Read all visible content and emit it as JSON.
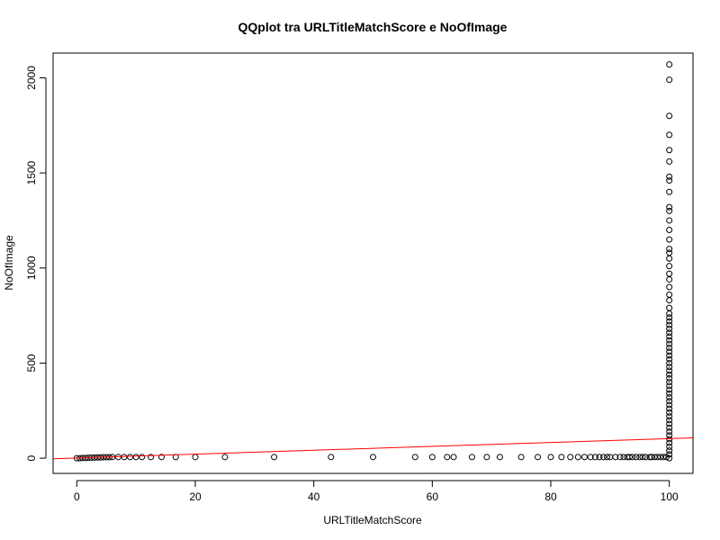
{
  "chart_data": {
    "type": "scatter",
    "title": "QQplot tra URLTitleMatchScore e NoOfImage",
    "xlabel": "URLTitleMatchScore",
    "ylabel": "NoOfImage",
    "xlim": [
      -4,
      104
    ],
    "ylim": [
      -80,
      2130
    ],
    "x_ticks": [
      0,
      20,
      40,
      60,
      80,
      100
    ],
    "y_ticks": [
      0,
      500,
      1000,
      1500,
      2000
    ],
    "x_tick_labels": [
      "0",
      "20",
      "40",
      "60",
      "80",
      "100"
    ],
    "y_tick_labels": [
      "0",
      "500",
      "1000",
      "1500",
      "2000"
    ],
    "grid": false,
    "point_color": "#000000",
    "line_color": "#ff0000",
    "reference_line": {
      "x": [
        -4,
        104
      ],
      "y": [
        -3,
        107
      ]
    },
    "series": [
      {
        "points": [
          [
            0,
            0
          ],
          [
            0.5,
            0
          ],
          [
            1,
            1
          ],
          [
            1.5,
            1
          ],
          [
            2,
            2
          ],
          [
            2.5,
            3
          ],
          [
            3,
            3
          ],
          [
            3.5,
            4
          ],
          [
            4,
            4
          ],
          [
            4.5,
            5
          ],
          [
            5,
            5
          ],
          [
            5.5,
            5
          ],
          [
            6,
            6
          ],
          [
            7,
            6
          ],
          [
            8,
            6
          ],
          [
            9,
            6
          ],
          [
            10,
            6
          ],
          [
            11,
            6
          ],
          [
            12.5,
            6
          ],
          [
            14.3,
            6
          ],
          [
            16.7,
            6
          ],
          [
            20,
            6
          ],
          [
            25,
            6
          ],
          [
            33.3,
            6
          ],
          [
            42.9,
            6
          ],
          [
            50,
            6
          ],
          [
            57.1,
            6
          ],
          [
            60,
            6
          ],
          [
            62.5,
            6
          ],
          [
            63.6,
            6
          ],
          [
            66.7,
            6
          ],
          [
            69.2,
            6
          ],
          [
            71.4,
            6
          ],
          [
            75,
            6
          ],
          [
            77.8,
            6
          ],
          [
            80,
            6
          ],
          [
            81.8,
            6
          ],
          [
            83.3,
            6
          ],
          [
            84.6,
            6
          ],
          [
            85.7,
            6
          ],
          [
            86.7,
            6
          ],
          [
            87.5,
            6
          ],
          [
            88.2,
            6
          ],
          [
            88.9,
            6
          ],
          [
            89.5,
            6
          ],
          [
            90,
            6
          ],
          [
            90.9,
            6
          ],
          [
            91.7,
            6
          ],
          [
            92.3,
            6
          ],
          [
            92.9,
            6
          ],
          [
            93.3,
            6
          ],
          [
            93.8,
            6
          ],
          [
            94.4,
            6
          ],
          [
            95,
            6
          ],
          [
            95.5,
            6
          ],
          [
            96,
            6
          ],
          [
            96.7,
            6
          ],
          [
            97,
            6
          ],
          [
            97.5,
            6
          ],
          [
            98,
            6
          ],
          [
            98.5,
            6
          ],
          [
            99,
            6
          ],
          [
            99.5,
            6
          ],
          [
            100,
            0
          ],
          [
            100,
            20
          ],
          [
            100,
            40
          ],
          [
            100,
            60
          ],
          [
            100,
            80
          ],
          [
            100,
            100
          ],
          [
            100,
            120
          ],
          [
            100,
            140
          ],
          [
            100,
            160
          ],
          [
            100,
            180
          ],
          [
            100,
            200
          ],
          [
            100,
            220
          ],
          [
            100,
            240
          ],
          [
            100,
            260
          ],
          [
            100,
            280
          ],
          [
            100,
            300
          ],
          [
            100,
            320
          ],
          [
            100,
            340
          ],
          [
            100,
            360
          ],
          [
            100,
            380
          ],
          [
            100,
            400
          ],
          [
            100,
            420
          ],
          [
            100,
            440
          ],
          [
            100,
            460
          ],
          [
            100,
            480
          ],
          [
            100,
            500
          ],
          [
            100,
            520
          ],
          [
            100,
            540
          ],
          [
            100,
            560
          ],
          [
            100,
            580
          ],
          [
            100,
            600
          ],
          [
            100,
            620
          ],
          [
            100,
            640
          ],
          [
            100,
            660
          ],
          [
            100,
            680
          ],
          [
            100,
            700
          ],
          [
            100,
            720
          ],
          [
            100,
            740
          ],
          [
            100,
            760
          ],
          [
            100,
            790
          ],
          [
            100,
            830
          ],
          [
            100,
            860
          ],
          [
            100,
            900
          ],
          [
            100,
            940
          ],
          [
            100,
            970
          ],
          [
            100,
            1010
          ],
          [
            100,
            1050
          ],
          [
            100,
            1080
          ],
          [
            100,
            1100
          ],
          [
            100,
            1150
          ],
          [
            100,
            1200
          ],
          [
            100,
            1250
          ],
          [
            100,
            1300
          ],
          [
            100,
            1320
          ],
          [
            100,
            1400
          ],
          [
            100,
            1460
          ],
          [
            100,
            1480
          ],
          [
            100,
            1560
          ],
          [
            100,
            1620
          ],
          [
            100,
            1700
          ],
          [
            100,
            1800
          ],
          [
            100,
            1990
          ],
          [
            100,
            2070
          ]
        ]
      }
    ]
  }
}
